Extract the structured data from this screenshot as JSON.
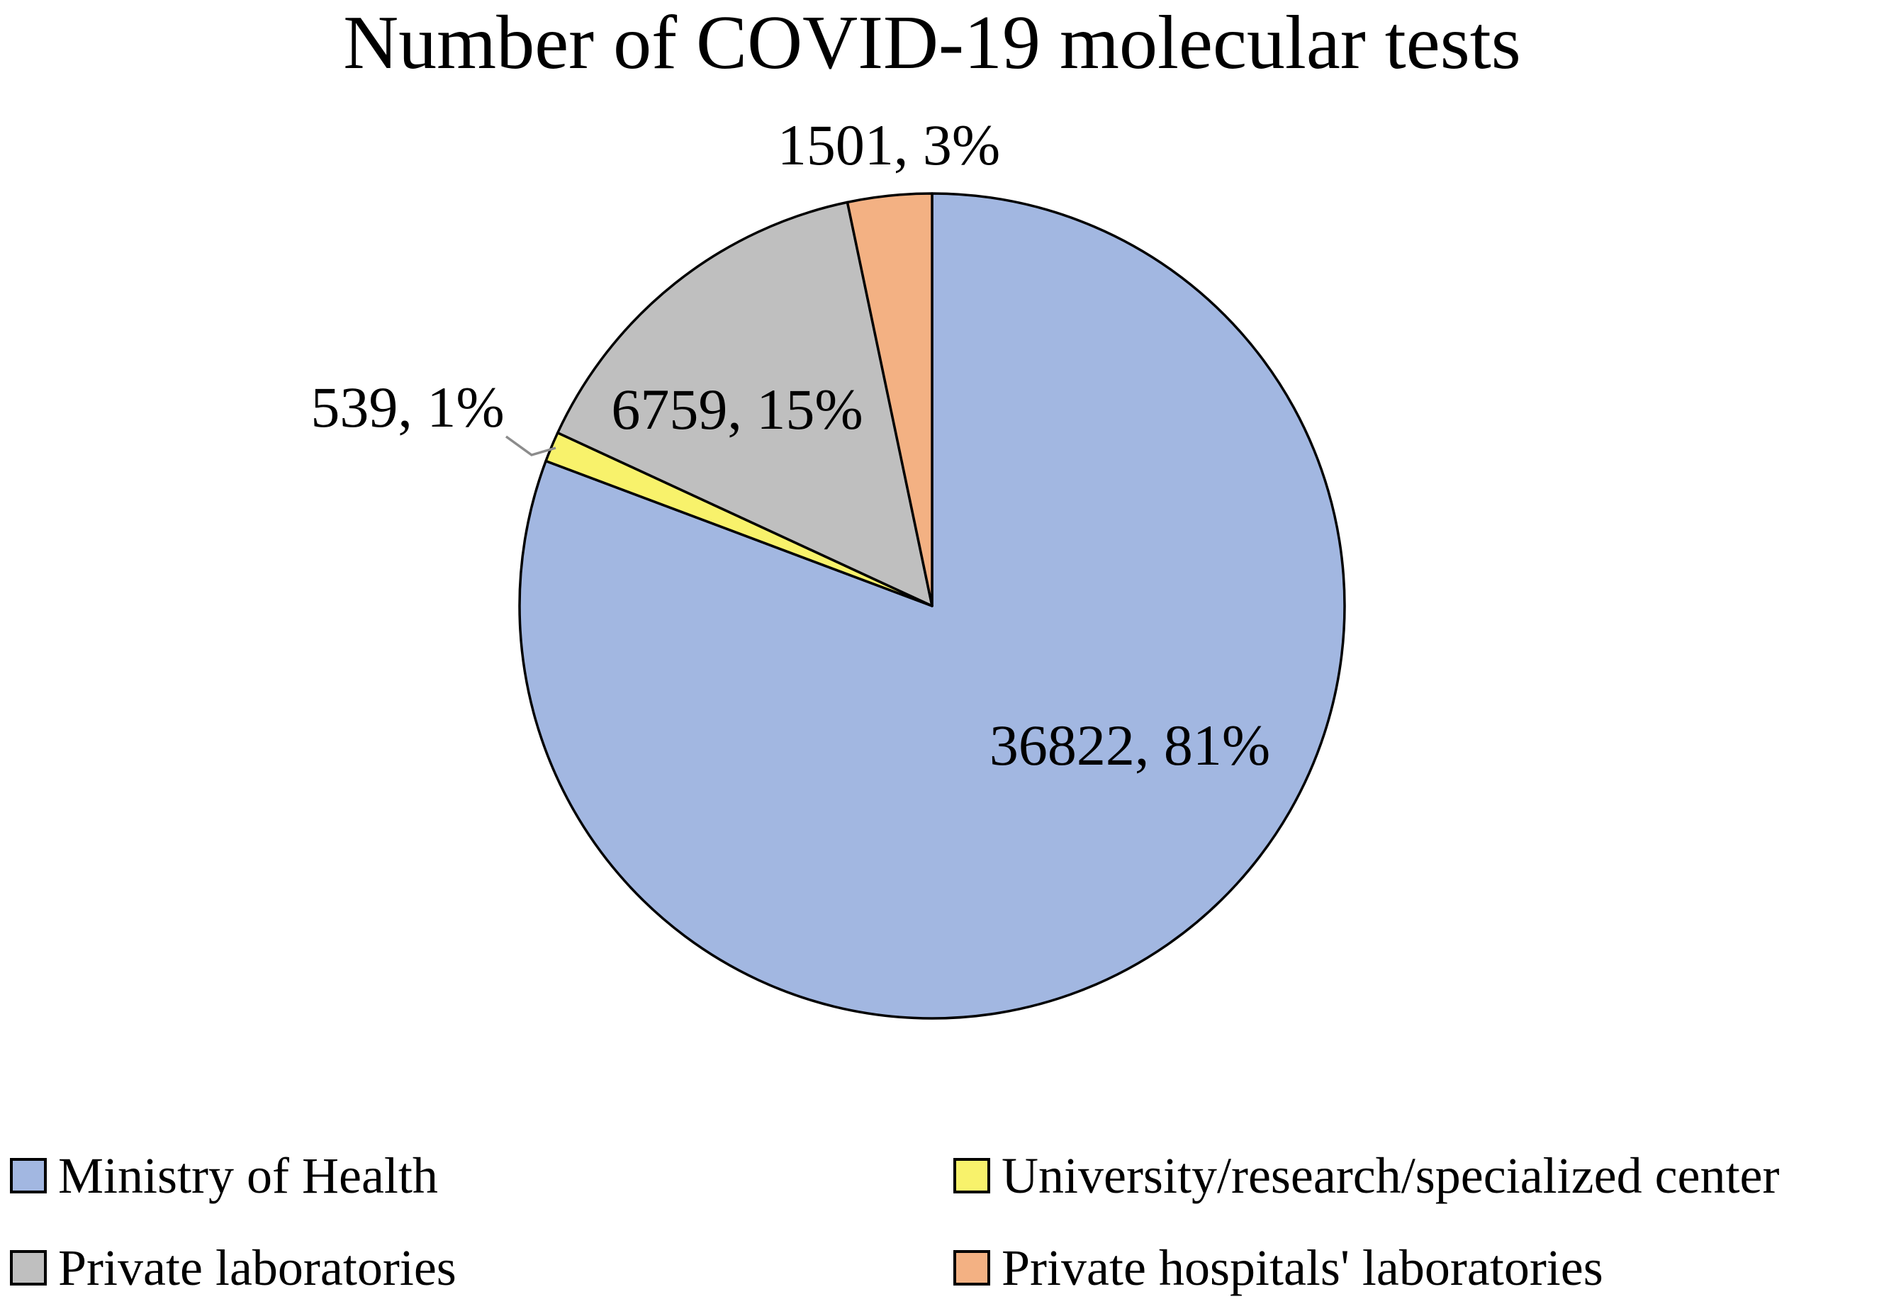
{
  "chart_data": {
    "type": "pie",
    "title": "Number of COVID-19 molecular tests",
    "direction": "clockwise",
    "start_angle_deg": 0,
    "legend_position": "bottom",
    "slices": [
      {
        "label": "Ministry of Health",
        "value": 36822,
        "pct": 81,
        "color": "#A2B7E1",
        "data_label": "36822, 81%"
      },
      {
        "label": "University/research/specialized center",
        "value": 539,
        "pct": 1,
        "color": "#F8F26B",
        "data_label": "539, 1%"
      },
      {
        "label": "Private laboratories",
        "value": 6759,
        "pct": 15,
        "color": "#BFBFBF",
        "data_label": "6759, 15%"
      },
      {
        "label": "Private hospitals' laboratories",
        "value": 1501,
        "pct": 3,
        "color": "#F3B183",
        "data_label": "1501, 3%"
      }
    ]
  }
}
